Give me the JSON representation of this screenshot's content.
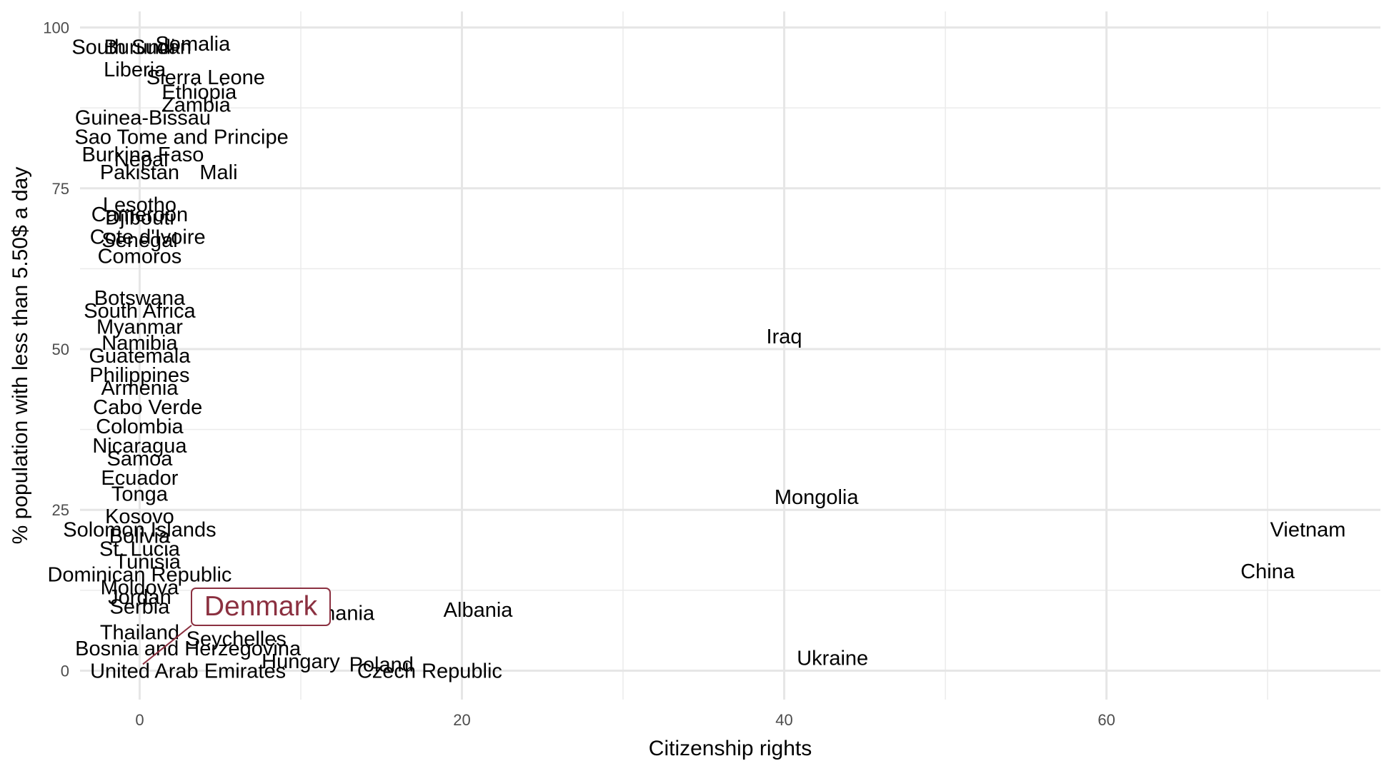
{
  "chart_data": {
    "type": "scatter",
    "title": "",
    "xlabel": "Citizenship rights",
    "ylabel": "% population with less than 5.50$ a day",
    "xlim": [
      -3.7,
      77
    ],
    "ylim": [
      -4.5,
      102.5
    ],
    "x_ticks": [
      0,
      20,
      40,
      60
    ],
    "y_ticks": [
      0,
      25,
      50,
      75,
      100
    ],
    "grid": true,
    "highlight_color": "#8b3040",
    "highlight": {
      "label": "Denmark",
      "x": 0.2,
      "y": 1
    },
    "points": [
      {
        "label": "South Sudan",
        "x": -0.5,
        "y": 97
      },
      {
        "label": "Somalia",
        "x": 3.3,
        "y": 97.5
      },
      {
        "label": "Burundi",
        "x": 0,
        "y": 97
      },
      {
        "label": "Liberia",
        "x": -0.3,
        "y": 93.5
      },
      {
        "label": "Sierra Leone",
        "x": 4.1,
        "y": 92.3
      },
      {
        "label": "Ethiopia",
        "x": 3.7,
        "y": 90
      },
      {
        "label": "Zambia",
        "x": 3.5,
        "y": 88
      },
      {
        "label": "Guinea-Bissau",
        "x": 0.2,
        "y": 86
      },
      {
        "label": "Sao Tome and Principe",
        "x": 2.6,
        "y": 83
      },
      {
        "label": "Burkina Faso",
        "x": 0.2,
        "y": 80.3
      },
      {
        "label": "Nepal",
        "x": 0.1,
        "y": 79.5
      },
      {
        "label": "Pakistan",
        "x": 0,
        "y": 77.5
      },
      {
        "label": "Mali",
        "x": 4.9,
        "y": 77.5
      },
      {
        "label": "Lesotho",
        "x": 0,
        "y": 72.5
      },
      {
        "label": "Cameroon",
        "x": 0,
        "y": 71
      },
      {
        "label": "Djibouti",
        "x": 0,
        "y": 70.5
      },
      {
        "label": "Cote d'Ivoire",
        "x": 0.5,
        "y": 67.5
      },
      {
        "label": "Senegal",
        "x": 0,
        "y": 67
      },
      {
        "label": "Comoros",
        "x": 0,
        "y": 64.5
      },
      {
        "label": "Botswana",
        "x": 0,
        "y": 58
      },
      {
        "label": "South Africa",
        "x": 0,
        "y": 56
      },
      {
        "label": "Myanmar",
        "x": 0,
        "y": 53.5
      },
      {
        "label": "Iraq",
        "x": 40,
        "y": 52
      },
      {
        "label": "Namibia",
        "x": 0,
        "y": 51
      },
      {
        "label": "Guatemala",
        "x": 0,
        "y": 49
      },
      {
        "label": "Philippines",
        "x": 0,
        "y": 46
      },
      {
        "label": "Armenia",
        "x": 0,
        "y": 44
      },
      {
        "label": "Cabo Verde",
        "x": 0.5,
        "y": 41
      },
      {
        "label": "Colombia",
        "x": 0,
        "y": 38
      },
      {
        "label": "Nicaragua",
        "x": 0,
        "y": 35
      },
      {
        "label": "Samoa",
        "x": 0,
        "y": 33
      },
      {
        "label": "Ecuador",
        "x": 0,
        "y": 30
      },
      {
        "label": "Tonga",
        "x": 0,
        "y": 27.5
      },
      {
        "label": "Mongolia",
        "x": 42,
        "y": 27
      },
      {
        "label": "Kosovo",
        "x": 0,
        "y": 24
      },
      {
        "label": "Solomon Islands",
        "x": 0,
        "y": 22
      },
      {
        "label": "Vietnam",
        "x": 72.5,
        "y": 22
      },
      {
        "label": "Bolivia",
        "x": 0,
        "y": 21
      },
      {
        "label": "St. Lucia",
        "x": 0,
        "y": 19
      },
      {
        "label": "Tunisia",
        "x": 0.5,
        "y": 17
      },
      {
        "label": "Dominican Republic",
        "x": 0,
        "y": 15
      },
      {
        "label": "China",
        "x": 70,
        "y": 15.5
      },
      {
        "label": "Moldova",
        "x": 0,
        "y": 13
      },
      {
        "label": "Jordan",
        "x": 0,
        "y": 11.5
      },
      {
        "label": "Serbia",
        "x": 0,
        "y": 10
      },
      {
        "label": "Romania",
        "x": 12,
        "y": 9
      },
      {
        "label": "Albania",
        "x": 21,
        "y": 9.5
      },
      {
        "label": "Thailand",
        "x": 0,
        "y": 6
      },
      {
        "label": "Seychelles",
        "x": 6,
        "y": 5
      },
      {
        "label": "Bosnia and Herzegovina",
        "x": 3,
        "y": 3.5
      },
      {
        "label": "Ukraine",
        "x": 43,
        "y": 2
      },
      {
        "label": "Hungary",
        "x": 10,
        "y": 1.5
      },
      {
        "label": "Poland",
        "x": 15,
        "y": 1
      },
      {
        "label": "Czech Republic",
        "x": 18,
        "y": 0
      },
      {
        "label": "United Arab Emirates",
        "x": 3,
        "y": 0
      }
    ]
  }
}
